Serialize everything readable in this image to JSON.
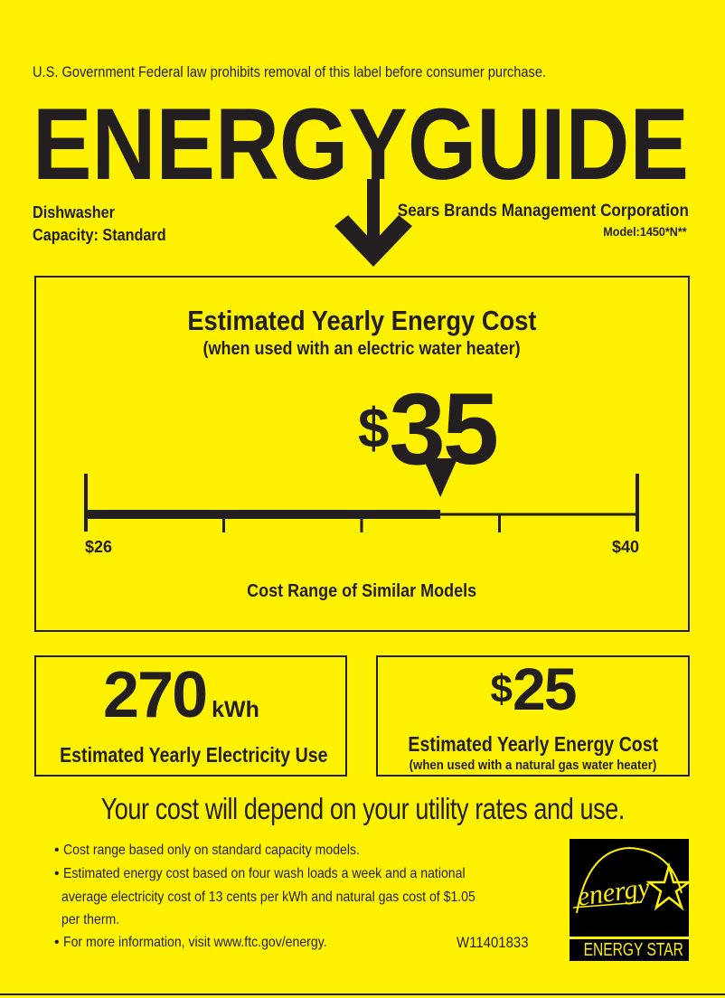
{
  "header": {
    "notice": "U.S. Government  Federal law prohibits removal of this label before consumer purchase.",
    "logo_text": "ENERGYGUIDE",
    "appliance_type": "Dishwasher",
    "capacity": "Capacity: Standard",
    "manufacturer": "Sears Brands Management Corporation",
    "model": "Model:1450*N**"
  },
  "cost_box": {
    "title": "Estimated Yearly Energy Cost",
    "subtitle": "(when used with an electric water heater)",
    "currency": "$",
    "value": "35",
    "value_number": 35,
    "range_min_label": "$26",
    "range_max_label": "$40",
    "range_min": 26,
    "range_max": 40,
    "range_caption": "Cost Range of Similar Models"
  },
  "electricity_box": {
    "value": "270",
    "unit": "kWh",
    "caption": "Estimated Yearly Electricity Use"
  },
  "gas_box": {
    "currency": "$",
    "value": "25",
    "caption": "Estimated Yearly Energy Cost",
    "subcaption": "(when used with a natural gas water heater)"
  },
  "disclaimer": "Your cost will depend on your utility rates and use.",
  "bullets": [
    "Cost range based only on standard capacity models.",
    "Estimated energy cost based on four wash loads a week and a national",
    "average electricity cost of 13 cents per kWh and natural gas cost of $1.05",
    "per therm.",
    "For more information, visit www.ftc.gov/energy."
  ],
  "label_code": "W11401833",
  "energy_star": {
    "script_text": "energy",
    "label": "ENERGY STAR"
  },
  "colors": {
    "background": "#fff200",
    "ink": "#231f20"
  }
}
